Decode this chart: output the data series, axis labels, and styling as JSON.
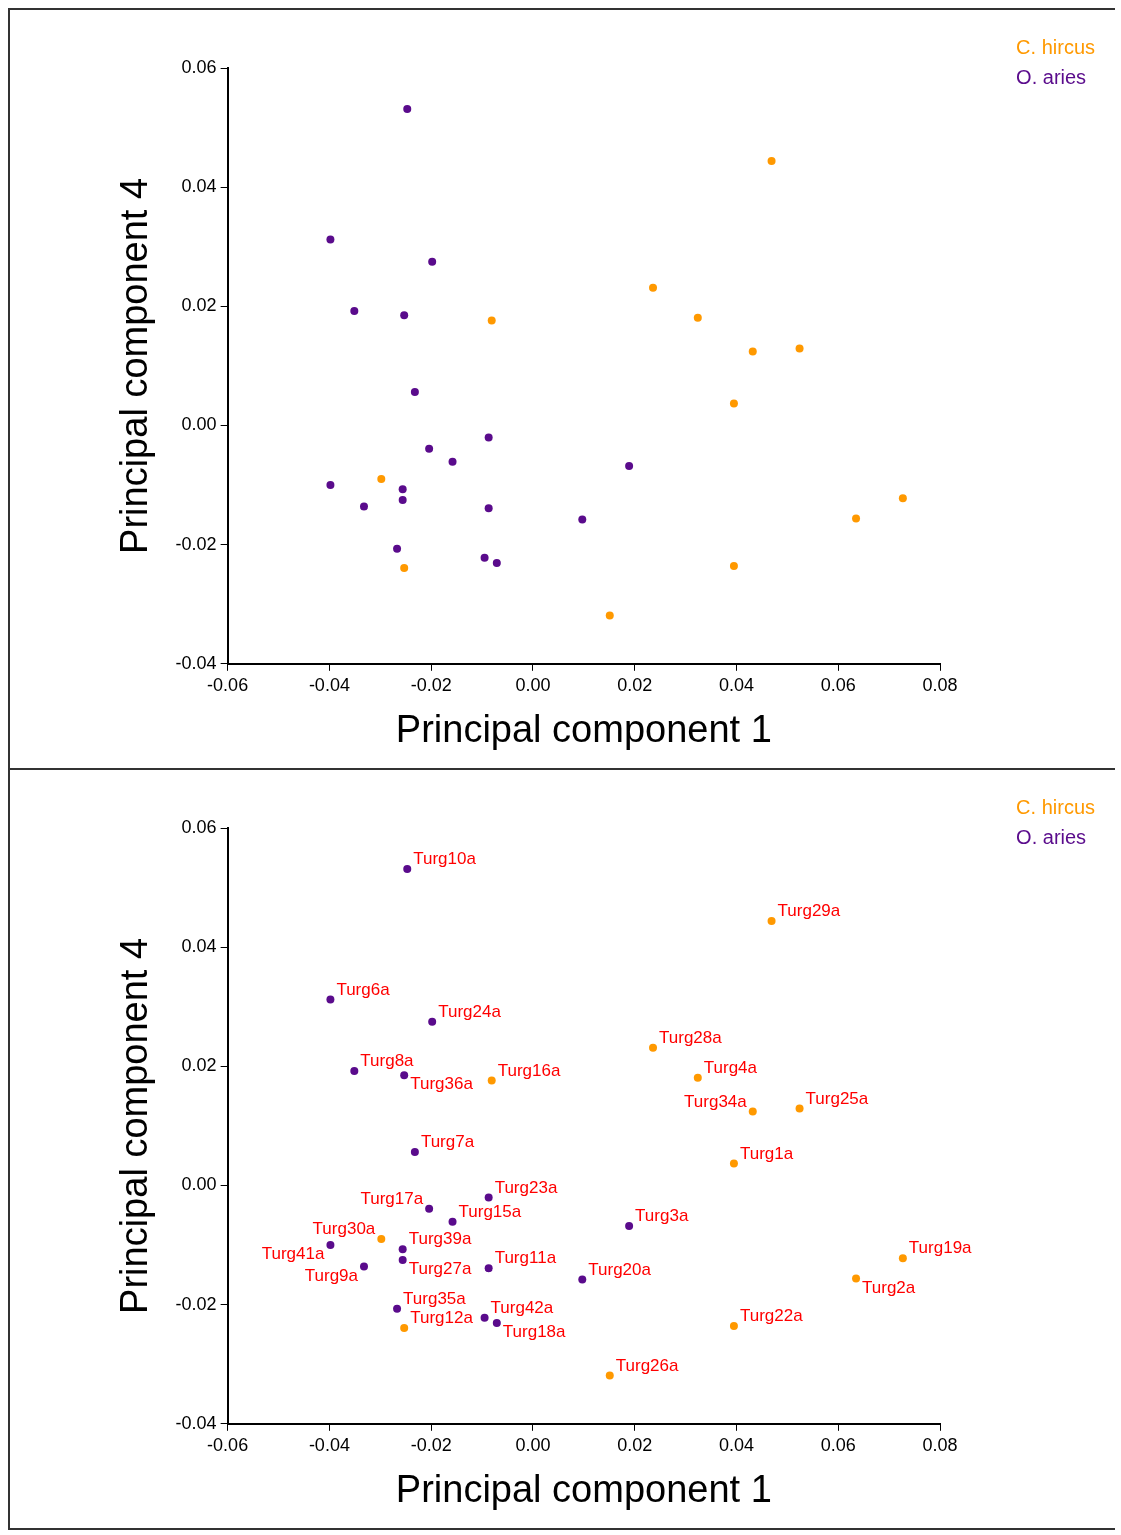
{
  "chart_data": [
    {
      "type": "scatter",
      "xlabel": "Principal component 1",
      "ylabel": "Principal component 4",
      "legend": "top right",
      "marker": "circle",
      "xlim": [
        -0.06,
        0.08
      ],
      "ylim": [
        -0.04,
        0.06
      ],
      "xticks": [
        -0.06,
        -0.04,
        -0.02,
        {
          "value": 0,
          "label": "0.00"
        },
        0.02,
        0.04,
        0.06,
        0.08
      ],
      "yticks": [
        -0.04,
        -0.02,
        {
          "value": 0,
          "label": "0.00"
        },
        0.02,
        0.04,
        0.06
      ],
      "series": [
        {
          "name": "C. hircus",
          "color": "#ff9900",
          "x": [
            0.0469,
            0.0236,
            -0.0081,
            0.0324,
            0.0432,
            0.0524,
            0.0395,
            -0.0298,
            0.0727,
            0.0635,
            0.0395,
            -0.0253,
            0.0151
          ],
          "values": [
            0.0444,
            0.0231,
            0.0176,
            0.0181,
            0.0124,
            0.0129,
            0.0037,
            -0.009,
            -0.0122,
            -0.0156,
            -0.0236,
            -0.0239,
            -0.0319
          ]
        },
        {
          "name": "O. aries",
          "color": "#5a0b8c",
          "x": [
            -0.0247,
            -0.0398,
            -0.0198,
            -0.0351,
            -0.0253,
            -0.0232,
            -0.0204,
            -0.0087,
            -0.0158,
            0.0189,
            -0.0398,
            -0.0256,
            -0.0256,
            -0.0332,
            -0.0087,
            0.0097,
            -0.0267,
            -0.0095,
            -0.0071
          ],
          "values": [
            0.0531,
            0.0312,
            0.0275,
            0.0192,
            0.0185,
            0.0056,
            -0.0039,
            -0.002,
            -0.0061,
            -0.0068,
            -0.01,
            -0.0107,
            -0.0125,
            -0.0136,
            -0.0139,
            -0.0158,
            -0.0207,
            -0.0222,
            -0.0231
          ]
        }
      ]
    },
    {
      "type": "scatter",
      "xlabel": "Principal component 1",
      "ylabel": "Principal component 4",
      "legend": "top right",
      "marker": "circle",
      "xlim": [
        -0.06,
        0.08
      ],
      "ylim": [
        -0.04,
        0.06
      ],
      "xticks": [
        -0.06,
        -0.04,
        -0.02,
        {
          "value": 0,
          "label": "0.00"
        },
        0.02,
        0.04,
        0.06,
        0.08
      ],
      "yticks": [
        -0.04,
        -0.02,
        {
          "value": 0,
          "label": "0.00"
        },
        0.02,
        0.04,
        0.06
      ],
      "series": [
        {
          "name": "C. hircus",
          "color": "#ff9900",
          "x": [
            0.0469,
            0.0236,
            -0.0081,
            0.0324,
            0.0432,
            0.0524,
            0.0395,
            -0.0298,
            0.0727,
            0.0635,
            0.0395,
            -0.0253,
            0.0151
          ],
          "values": [
            0.0444,
            0.0231,
            0.0176,
            0.0181,
            0.0124,
            0.0129,
            0.0037,
            -0.009,
            -0.0122,
            -0.0156,
            -0.0236,
            -0.0239,
            -0.0319
          ],
          "value_labels": [
            "Turg29a",
            "Turg28a",
            "Turg16a",
            "Turg4a",
            "Turg34a",
            "Turg25a",
            "Turg1a",
            "Turg30a",
            "Turg19a",
            "Turg2a",
            "Turg22a",
            "Turg12a",
            "Turg26a"
          ]
        },
        {
          "name": "O. aries",
          "color": "#5a0b8c",
          "x": [
            -0.0247,
            -0.0398,
            -0.0198,
            -0.0351,
            -0.0253,
            -0.0232,
            -0.0204,
            -0.0087,
            -0.0158,
            0.0189,
            -0.0398,
            -0.0256,
            -0.0256,
            -0.0332,
            -0.0087,
            0.0097,
            -0.0267,
            -0.0095,
            -0.0071
          ],
          "values": [
            0.0531,
            0.0312,
            0.0275,
            0.0192,
            0.0185,
            0.0056,
            -0.0039,
            -0.002,
            -0.0061,
            -0.0068,
            -0.01,
            -0.0107,
            -0.0125,
            -0.0136,
            -0.0139,
            -0.0158,
            -0.0207,
            -0.0222,
            -0.0231
          ],
          "value_labels": [
            "Turg10a",
            "Turg6a",
            "Turg24a",
            "Turg8a",
            "Turg36a",
            "Turg7a",
            "Turg17a",
            "Turg23a",
            "Turg15a",
            "Turg3a",
            "Turg41a",
            "Turg39a",
            "Turg27a",
            "Turg9a",
            "Turg11a",
            "Turg20a",
            "Turg35a",
            "Turg42a",
            "Turg18a"
          ]
        }
      ]
    }
  ]
}
